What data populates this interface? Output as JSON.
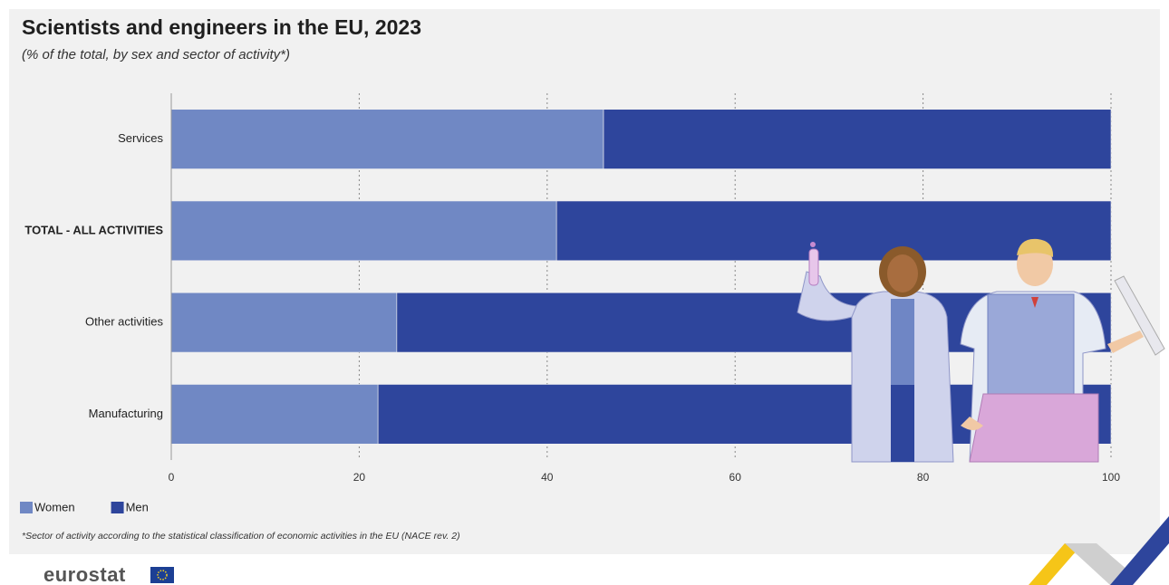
{
  "chart_data": {
    "type": "bar",
    "orientation": "horizontal",
    "stacked": true,
    "title": "Scientists and engineers in the EU, 2023",
    "subtitle": "(% of the total, by sex and sector of activity*)",
    "categories": [
      "Services",
      "TOTAL - ALL ACTIVITIES",
      "Other activities",
      "Manufacturing"
    ],
    "bold_category_index": 1,
    "series": [
      {
        "name": "Women",
        "color": "#7088c4",
        "values": [
          46,
          41,
          24,
          22
        ]
      },
      {
        "name": "Men",
        "color": "#2e459c",
        "values": [
          54,
          59,
          76,
          78
        ]
      }
    ],
    "xlim": [
      0,
      100
    ],
    "xticks": [
      0,
      20,
      40,
      60,
      80,
      100
    ],
    "grid": true,
    "legend": "bottom-left",
    "footnote": "*Sector of activity according to the statistical classification of economic activities in the EU (NACE rev. 2)",
    "source": "eurostat"
  }
}
